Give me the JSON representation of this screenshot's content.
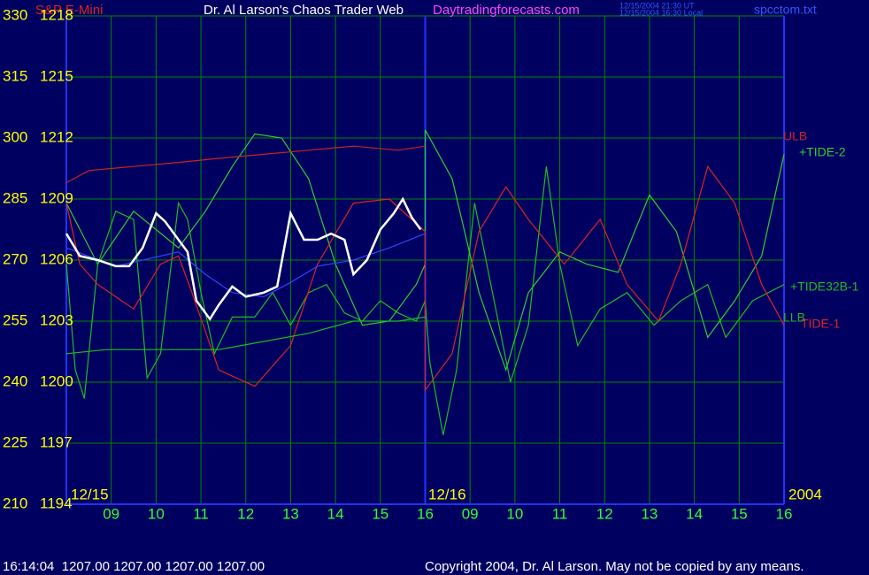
{
  "chart_data": {
    "type": "line",
    "title": "Dr. Al Larson's Chaos Trader Web",
    "site": "Daytradingforecasts.com",
    "timestamp_lines": [
      "12/15/2004 21:30 UT",
      "12/15/2004 16:30 Local"
    ],
    "file": "spcctom.txt",
    "date_labels": [
      "12/15",
      "12/16",
      "2004"
    ],
    "status": "16:14:04  1207.00 1207.00 1207.00 1207.00",
    "copyright": "Copyright 2004, Dr. Al Larson. May not be copied by any means.",
    "xlim": [
      0,
      16
    ],
    "xticks": [
      {
        "value": 1,
        "label": "09"
      },
      {
        "value": 2,
        "label": "10"
      },
      {
        "value": 3,
        "label": "11"
      },
      {
        "value": 4,
        "label": "12"
      },
      {
        "value": 5,
        "label": "13"
      },
      {
        "value": 6,
        "label": "14"
      },
      {
        "value": 7,
        "label": "15"
      },
      {
        "value": 8,
        "label": "16"
      },
      {
        "value": 9,
        "label": "09"
      },
      {
        "value": 10,
        "label": "10"
      },
      {
        "value": 11,
        "label": "11"
      },
      {
        "value": 12,
        "label": "12"
      },
      {
        "value": 13,
        "label": "13"
      },
      {
        "value": 14,
        "label": "14"
      },
      {
        "value": 15,
        "label": "15"
      },
      {
        "value": 16,
        "label": "16"
      }
    ],
    "ylim": [
      210,
      330
    ],
    "yticks": [
      210,
      225,
      240,
      255,
      270,
      285,
      300,
      315,
      330
    ],
    "y2lim": [
      1194,
      1218
    ],
    "y2ticks": [
      1194,
      1197,
      1200,
      1203,
      1206,
      1209,
      1212,
      1215,
      1218
    ],
    "grid": true,
    "series": [
      {
        "name": "+TIDE32B-1",
        "color": "#22bb22",
        "x": [
          0,
          0.2,
          0.4,
          0.7,
          1.1,
          1.5,
          1.8,
          2.1,
          2.5,
          2.7,
          3.0,
          3.3,
          3.7,
          4.2,
          4.6,
          5.0,
          5.4,
          5.8,
          6.2,
          6.6,
          7.0,
          7.4,
          7.8,
          8.0,
          8.1,
          8.4,
          8.7,
          9.1,
          9.5,
          9.9,
          10.3,
          10.7,
          11.0,
          11.4,
          11.9,
          12.5,
          13.1,
          13.7,
          14.3,
          14.7,
          15.3,
          16.0
        ],
        "values": [
          269,
          243,
          236,
          269,
          282,
          280,
          241,
          247,
          284,
          280,
          262,
          247,
          256,
          256,
          262,
          254,
          262,
          264,
          257,
          255,
          260,
          257,
          255,
          260,
          245,
          227,
          243,
          284,
          262,
          240,
          254,
          293,
          269,
          249,
          258,
          262,
          254,
          260,
          264,
          251,
          260,
          264
        ]
      },
      {
        "name": "+TIDE-2",
        "color": "#33cc33",
        "x": [
          0,
          0.7,
          1.5,
          2.5,
          3.1,
          3.7,
          4.2,
          4.8,
          5.4,
          6.0,
          6.6,
          7.2,
          7.8,
          8.0,
          8.0,
          8.6,
          9.2,
          9.8,
          10.3,
          11.0,
          11.6,
          12.3,
          13.0,
          13.6,
          14.3,
          14.9,
          15.5,
          16.0
        ],
        "values": [
          284,
          269,
          282,
          273,
          282,
          293,
          301,
          300,
          290,
          269,
          254,
          255,
          264,
          269,
          302,
          290,
          262,
          243,
          262,
          272,
          269,
          267,
          286,
          277,
          251,
          260,
          271,
          296
        ]
      },
      {
        "name": "TIDE-1",
        "color": "#dd2222",
        "x": [
          0,
          0.3,
          0.7,
          1.5,
          2.1,
          2.5,
          2.8,
          3.4,
          4.2,
          5.0,
          5.6,
          6.4,
          7.2,
          8.0,
          8.0,
          8.6,
          9.2,
          9.8,
          10.3,
          11.1,
          11.9,
          12.5,
          13.2,
          13.7,
          14.3,
          14.9,
          15.5,
          16.0
        ],
        "values": [
          284,
          269,
          264,
          258,
          269,
          271,
          262,
          243,
          239,
          249,
          269,
          284,
          285,
          277,
          238,
          247,
          277,
          288,
          280,
          269,
          280,
          264,
          255,
          269,
          293,
          284,
          264,
          254
        ]
      },
      {
        "name": "ULB",
        "color": "#cc2222",
        "x": [
          0,
          0.5,
          1.5,
          2.5,
          3.4,
          4.4,
          5.4,
          6.4,
          7.4,
          8.0
        ],
        "values": [
          289,
          292,
          293,
          294,
          295,
          296,
          297,
          298,
          297,
          298
        ]
      },
      {
        "name": "LLB",
        "color": "#22bb22",
        "x": [
          0,
          0.9,
          2.5,
          3.4,
          4.4,
          5.4,
          6.4,
          7.4,
          8.0
        ],
        "values": [
          247,
          248,
          248,
          248,
          250,
          252,
          255,
          255,
          256
        ]
      },
      {
        "color": "#3344ff",
        "axis": "y2",
        "x": [
          0,
          1.1,
          2.5,
          3.1,
          3.7,
          4.4,
          5.0,
          5.6,
          6.4,
          7.2,
          8.0
        ],
        "values": [
          1206.6,
          1205.7,
          1206.4,
          1205.3,
          1204.4,
          1204.2,
          1204.9,
          1205.7,
          1206.0,
          1206.6,
          1207.3
        ]
      },
      {
        "name": "S&P E-Mini",
        "color": "#ffffff",
        "axis": "y2",
        "x": [
          0,
          0.3,
          0.7,
          1.1,
          1.4,
          1.7,
          2.0,
          2.2,
          2.5,
          2.7,
          2.9,
          3.2,
          3.4,
          3.7,
          4.0,
          4.4,
          4.7,
          5.0,
          5.3,
          5.6,
          5.9,
          6.2,
          6.4,
          6.7,
          7.0,
          7.3,
          7.5,
          7.7,
          7.9
        ],
        "values": [
          1207.3,
          1206.2,
          1206.0,
          1205.7,
          1205.7,
          1206.6,
          1208.3,
          1207.9,
          1207.0,
          1206.4,
          1204.0,
          1203.1,
          1203.8,
          1204.7,
          1204.2,
          1204.4,
          1204.7,
          1208.3,
          1207.0,
          1207.0,
          1207.3,
          1207.0,
          1205.3,
          1206.0,
          1207.5,
          1208.3,
          1209.0,
          1208.1,
          1207.5
        ]
      }
    ]
  }
}
